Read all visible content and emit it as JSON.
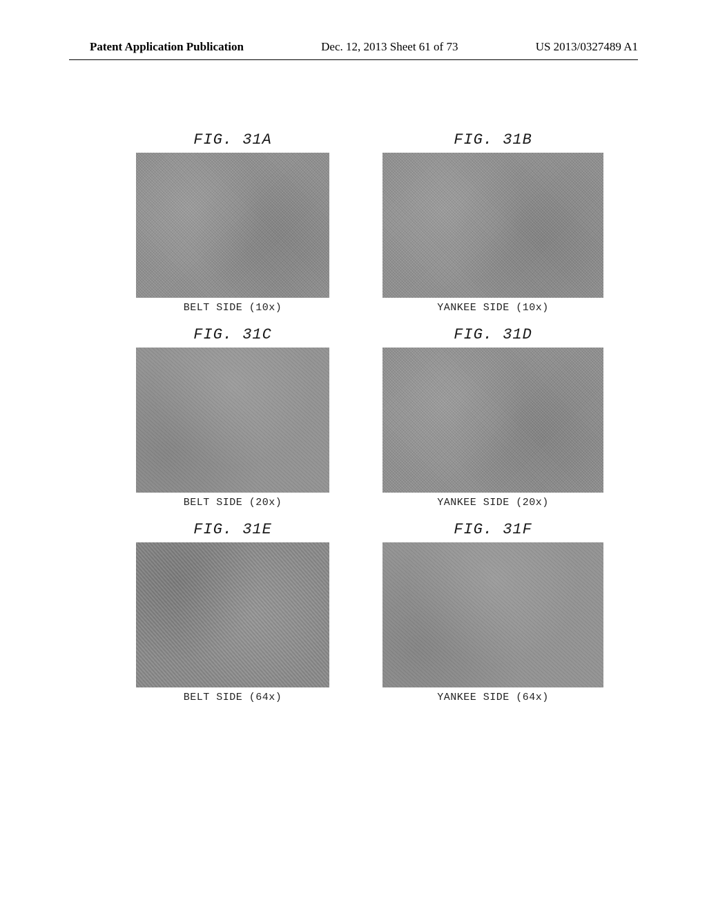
{
  "header": {
    "left": "Patent Application Publication",
    "center": "Dec. 12, 2013  Sheet 61 of 73",
    "right": "US 2013/0327489 A1"
  },
  "figures": [
    {
      "title": "FIG. 31A",
      "caption": "BELT SIDE (10x)",
      "texture": "photo",
      "width": "normal"
    },
    {
      "title": "FIG. 31B",
      "caption": "YANKEE SIDE (10x)",
      "texture": "photo wide",
      "width": "wide"
    },
    {
      "title": "FIG. 31C",
      "caption": "BELT SIDE (20x)",
      "texture": "photo texture-b",
      "width": "normal"
    },
    {
      "title": "FIG. 31D",
      "caption": "YANKEE SIDE (20x)",
      "texture": "photo wide",
      "width": "wide"
    },
    {
      "title": "FIG. 31E",
      "caption": "BELT SIDE (64x)",
      "texture": "photo texture-c",
      "width": "normal"
    },
    {
      "title": "FIG. 31F",
      "caption": "YANKEE SIDE (64x)",
      "texture": "photo wide texture-b",
      "width": "wide"
    }
  ],
  "style": {
    "page_bg": "#ffffff",
    "text_color": "#000000",
    "photo_gray": "#8d8d8d",
    "header_fontsize": 17,
    "title_fontsize": 22,
    "caption_fontsize": 15
  }
}
